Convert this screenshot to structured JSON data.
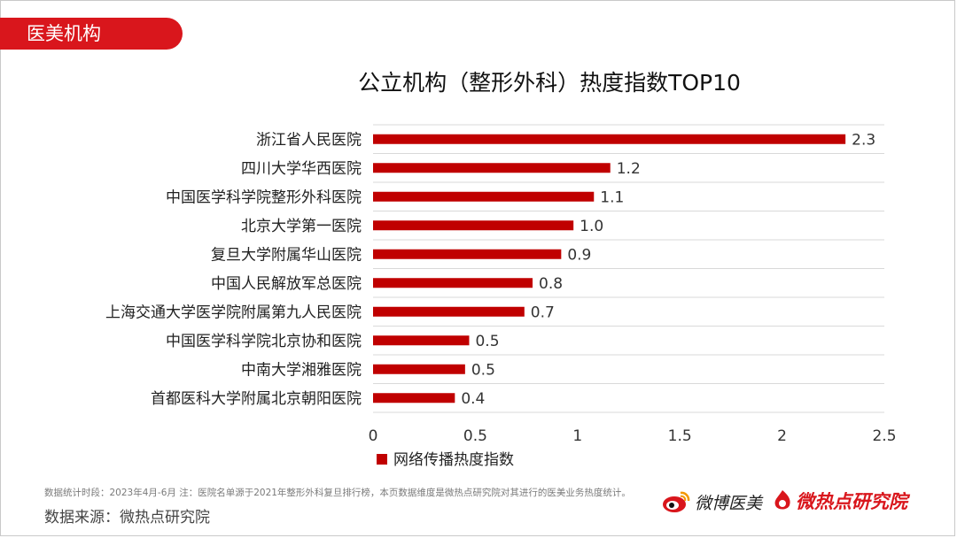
{
  "header": {
    "tag": "医美机构"
  },
  "chart_data": {
    "type": "bar",
    "orientation": "horizontal",
    "title": "公立机构（整形外科）热度指数TOP10",
    "categories": [
      "浙江省人民医院",
      "四川大学华西医院",
      "中国医学科学院整形外科医院",
      "北京大学第一医院",
      "复旦大学附属华山医院",
      "中国人民解放军总医院",
      "上海交通大学医学院附属第九人民医院",
      "中国医学科学院北京协和医院",
      "中南大学湘雅医院",
      "首都医科大学附属北京朝阳医院"
    ],
    "series": [
      {
        "name": "网络传播热度指数",
        "values": [
          2.31,
          1.16,
          1.08,
          0.98,
          0.92,
          0.78,
          0.74,
          0.47,
          0.45,
          0.4
        ],
        "labels": [
          "2.3",
          "1.2",
          "1.1",
          "1.0",
          "0.9",
          "0.8",
          "0.7",
          "0.5",
          "0.5",
          "0.4"
        ],
        "color": "#c00000"
      }
    ],
    "xlim": [
      0,
      2.5
    ],
    "xticks": [
      "0",
      "0.5",
      "1",
      "1.5",
      "2",
      "2.5"
    ],
    "xtick_values": [
      0,
      0.5,
      1,
      1.5,
      2,
      2.5
    ],
    "grid": "horizontal",
    "legend": "bottom"
  },
  "footer": {
    "note": "数据统计时段：2023年4月-6月  注：医院名单源于2021年整形外科复旦排行榜，本页数据维度是微热点研究院对其进行的医美业务热度统计。",
    "source": "数据来源：微热点研究院",
    "logo_weibo": "微博医美",
    "logo_wrd": "微热点研究院"
  },
  "colors": {
    "brand": "#d9161c",
    "bar": "#c00000"
  }
}
